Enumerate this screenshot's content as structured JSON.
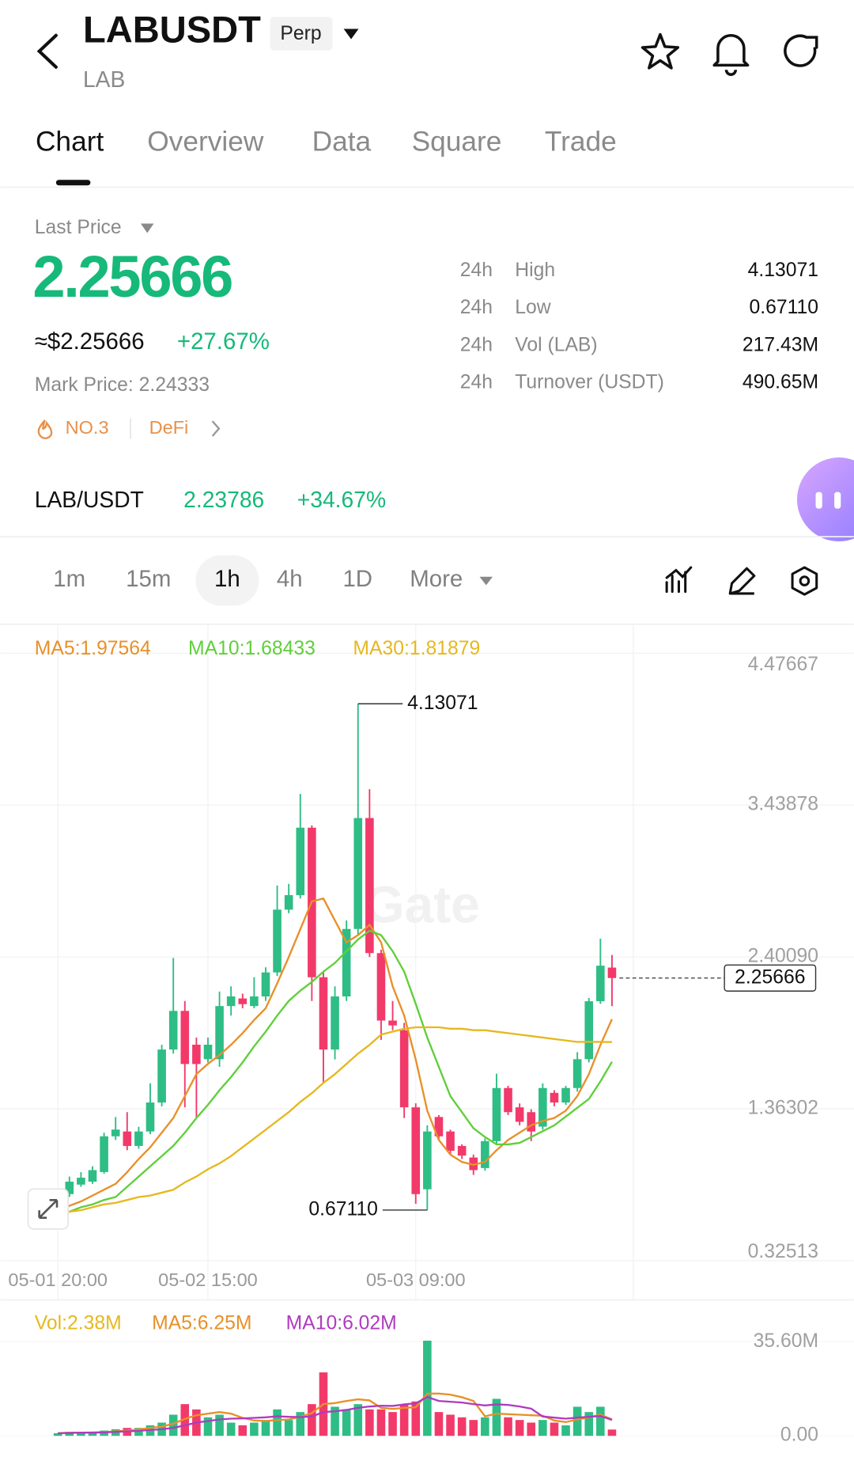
{
  "header": {
    "symbol": "LABUSDT",
    "badge": "Perp",
    "base": "LAB"
  },
  "tabs": [
    "Chart",
    "Overview",
    "Data",
    "Square",
    "Trade"
  ],
  "price": {
    "caption": "Last Price",
    "last": "2.25666",
    "fiat": "≈$2.25666",
    "change": "+27.67%",
    "mark": "Mark Price: 2.24333",
    "rank": "NO.3",
    "sector": "DeFi"
  },
  "stats": [
    [
      "24h",
      "High",
      "4.13071"
    ],
    [
      "24h",
      "Low",
      "0.67110"
    ],
    [
      "24h",
      "Vol (LAB)",
      "217.43M"
    ],
    [
      "24h",
      "Turnover (USDT)",
      "490.65M"
    ]
  ],
  "spot": {
    "pair": "LAB/USDT",
    "price": "2.23786",
    "change": "+34.67%"
  },
  "intervals": [
    "1m",
    "15m",
    "1h",
    "4h",
    "1D",
    "More"
  ],
  "chart_data": {
    "type": "candlestick",
    "watermark": "Gate",
    "up_color": "#2ebd85",
    "down_color": "#f23a6a",
    "categories": [
      "05-01 20:00",
      null,
      null,
      null,
      null,
      null,
      null,
      null,
      null,
      null,
      null,
      null,
      null,
      "05-02 15:00",
      null,
      null,
      null,
      null,
      null,
      null,
      null,
      null,
      null,
      null,
      null,
      null,
      null,
      null,
      null,
      null,
      null,
      "05-03 09:00",
      null,
      null,
      null,
      null,
      null,
      null,
      null,
      null,
      null,
      null,
      null,
      null,
      null,
      null,
      null,
      null,
      null
    ],
    "candles": [
      [
        0.681,
        0.76,
        0.79,
        0.675
      ],
      [
        0.78,
        0.865,
        0.9,
        0.76
      ],
      [
        0.845,
        0.892,
        0.93,
        0.83
      ],
      [
        0.865,
        0.944,
        0.97,
        0.85
      ],
      [
        0.931,
        1.175,
        1.2,
        0.92
      ],
      [
        1.175,
        1.221,
        1.307,
        1.15
      ],
      [
        1.208,
        1.109,
        1.34,
        1.08
      ],
      [
        1.109,
        1.208,
        1.24,
        1.09
      ],
      [
        1.208,
        1.406,
        1.537,
        1.19
      ],
      [
        1.406,
        1.768,
        1.8,
        1.38
      ],
      [
        1.768,
        2.032,
        2.394,
        1.74
      ],
      [
        2.032,
        1.669,
        2.1,
        1.373
      ],
      [
        1.801,
        1.669,
        1.85,
        1.307
      ],
      [
        1.702,
        1.801,
        1.85,
        1.68
      ],
      [
        1.702,
        2.065,
        2.164,
        1.65
      ],
      [
        2.065,
        2.131,
        2.2,
        2.0
      ],
      [
        2.117,
        2.078,
        2.15,
        2.05
      ],
      [
        2.065,
        2.131,
        2.262,
        2.05
      ],
      [
        2.131,
        2.295,
        2.33,
        2.1
      ],
      [
        2.295,
        2.724,
        2.889,
        2.27
      ],
      [
        2.724,
        2.823,
        2.9,
        2.7
      ],
      [
        2.823,
        3.284,
        3.515,
        2.8
      ],
      [
        3.284,
        2.262,
        3.3,
        2.1
      ],
      [
        2.262,
        1.768,
        2.3,
        1.537
      ],
      [
        1.768,
        2.131,
        2.2,
        1.7
      ],
      [
        2.131,
        2.592,
        2.65,
        2.1
      ],
      [
        2.592,
        3.35,
        4.13071,
        2.55
      ],
      [
        3.35,
        2.427,
        3.547,
        2.4
      ],
      [
        2.427,
        1.966,
        2.45,
        1.834
      ],
      [
        1.966,
        1.933,
        2.1,
        1.9
      ],
      [
        1.9,
        1.373,
        1.95,
        1.3
      ],
      [
        1.373,
        0.78,
        1.4,
        0.714
      ],
      [
        0.813,
        1.208,
        1.25,
        0.6711
      ],
      [
        1.307,
        1.175,
        1.32,
        1.15
      ],
      [
        1.208,
        1.076,
        1.22,
        1.05
      ],
      [
        1.109,
        1.043,
        1.12,
        1.02
      ],
      [
        1.03,
        0.944,
        1.05,
        0.911
      ],
      [
        0.958,
        1.142,
        1.16,
        0.94
      ],
      [
        1.142,
        1.505,
        1.603,
        1.12
      ],
      [
        1.505,
        1.34,
        1.52,
        1.32
      ],
      [
        1.373,
        1.274,
        1.4,
        1.25
      ],
      [
        1.34,
        1.208,
        1.36,
        1.142
      ],
      [
        1.241,
        1.505,
        1.537,
        1.22
      ],
      [
        1.472,
        1.406,
        1.49,
        1.38
      ],
      [
        1.406,
        1.505,
        1.52,
        1.39
      ],
      [
        1.505,
        1.702,
        1.75,
        1.48
      ],
      [
        1.702,
        2.098,
        2.12,
        1.68
      ],
      [
        2.098,
        2.341,
        2.526,
        2.08
      ],
      [
        2.328,
        2.25666,
        2.414,
        2.065
      ]
    ],
    "ylim": [
      0.32513,
      4.47667
    ],
    "yticks": [
      4.47667,
      3.43878,
      {
        "value": 2.4009,
        "label": "2.40090"
      },
      1.36302,
      0.32513
    ],
    "series": [
      {
        "name": "MA5:1.97564",
        "color": "#e8902a",
        "values": [
          0.66,
          0.7,
          0.73,
          0.77,
          0.81,
          0.85,
          0.93,
          1.02,
          1.1,
          1.2,
          1.3,
          1.45,
          1.6,
          1.67,
          1.73,
          1.8,
          1.88,
          1.97,
          2.05,
          2.22,
          2.4,
          2.59,
          2.78,
          2.8,
          2.65,
          2.5,
          2.55,
          2.62,
          2.5,
          2.2,
          2.0,
          1.7,
          1.35,
          1.15,
          1.05,
          1.0,
          0.98,
          1.0,
          1.08,
          1.15,
          1.2,
          1.25,
          1.28,
          1.3,
          1.35,
          1.45,
          1.6,
          1.8,
          1.97564
        ]
      },
      {
        "name": "MA10:1.68433",
        "color": "#5fcf3a",
        "values": [
          0.64,
          0.66,
          0.69,
          0.71,
          0.74,
          0.76,
          0.83,
          0.9,
          0.97,
          1.04,
          1.11,
          1.2,
          1.3,
          1.39,
          1.49,
          1.58,
          1.68,
          1.79,
          1.89,
          2.0,
          2.1,
          2.17,
          2.23,
          2.3,
          2.36,
          2.44,
          2.52,
          2.58,
          2.55,
          2.44,
          2.3,
          2.08,
          1.85,
          1.65,
          1.45,
          1.34,
          1.23,
          1.17,
          1.12,
          1.12,
          1.13,
          1.17,
          1.21,
          1.25,
          1.31,
          1.37,
          1.43,
          1.55,
          1.68433
        ]
      },
      {
        "name": "MA30:1.81879",
        "color": "#e6b820",
        "values": [
          0.64,
          0.66,
          0.67,
          0.69,
          0.71,
          0.72,
          0.74,
          0.76,
          0.77,
          0.79,
          0.81,
          0.86,
          0.9,
          0.95,
          0.99,
          1.04,
          1.1,
          1.16,
          1.22,
          1.28,
          1.34,
          1.41,
          1.47,
          1.54,
          1.6,
          1.67,
          1.74,
          1.8,
          1.87,
          1.89,
          1.91,
          1.92,
          1.92,
          1.92,
          1.91,
          1.91,
          1.9,
          1.9,
          1.89,
          1.88,
          1.87,
          1.86,
          1.85,
          1.84,
          1.83,
          1.82,
          1.82,
          1.82,
          1.81879
        ]
      }
    ],
    "annotations": [
      {
        "value": 4.13071,
        "label": "4.13071"
      },
      {
        "value": 0.6711,
        "label": "0.67110"
      },
      {
        "value": 2.25666,
        "label": "2.25666"
      }
    ],
    "volume": {
      "name": "Vol:2.38M",
      "values": [
        1,
        1.5,
        1,
        1.5,
        2,
        2.5,
        3,
        3,
        4,
        5,
        8,
        12,
        10,
        7,
        8,
        5,
        4,
        5,
        6,
        10,
        6,
        9,
        12,
        24,
        11,
        10,
        12,
        10,
        10,
        9,
        12,
        13,
        36,
        9,
        8,
        7,
        6,
        7,
        14,
        7,
        6,
        5,
        6,
        5,
        4,
        11,
        9,
        11,
        2.38
      ],
      "ylim": [
        0,
        35.6
      ],
      "yticks": [
        {
          "value": 35.6,
          "label": "35.60M"
        },
        {
          "value": 0,
          "label": "0.00"
        }
      ],
      "series": [
        {
          "name": "MA5:6.25M",
          "color": "#e8902a",
          "values": [
            1,
            1.2,
            1.2,
            1.3,
            1.4,
            1.7,
            2,
            2.4,
            3,
            3.5,
            4.6,
            6.4,
            7.8,
            8.4,
            9,
            8.4,
            6.8,
            5.8,
            5.6,
            6,
            6.2,
            7.2,
            8.6,
            12,
            12.4,
            13.2,
            13.8,
            13.4,
            10.6,
            10.2,
            10.6,
            10.8,
            16,
            16,
            15.6,
            14.6,
            13.2,
            7.4,
            8.4,
            8.2,
            8,
            7.8,
            7.6,
            5.8,
            5.2,
            6.2,
            7,
            8,
            6.25
          ]
        },
        {
          "name": "MA10:6.02M",
          "color": "#b03ac0",
          "values": [
            1,
            1.1,
            1.2,
            1.2,
            1.3,
            1.5,
            1.7,
            1.9,
            2.2,
            2.5,
            3,
            4,
            5,
            5.6,
            6.2,
            6.5,
            6.6,
            6.8,
            7,
            7.4,
            7.2,
            7.1,
            7.3,
            9,
            9.3,
            9.8,
            10.6,
            11.1,
            11.4,
            11.3,
            11.9,
            12.3,
            14.7,
            13.2,
            12.9,
            12.6,
            12,
            11.5,
            11.9,
            11.7,
            11.1,
            10.3,
            7.3,
            6.9,
            6.5,
            6.9,
            7.2,
            7.5,
            6.02
          ]
        }
      ]
    }
  }
}
